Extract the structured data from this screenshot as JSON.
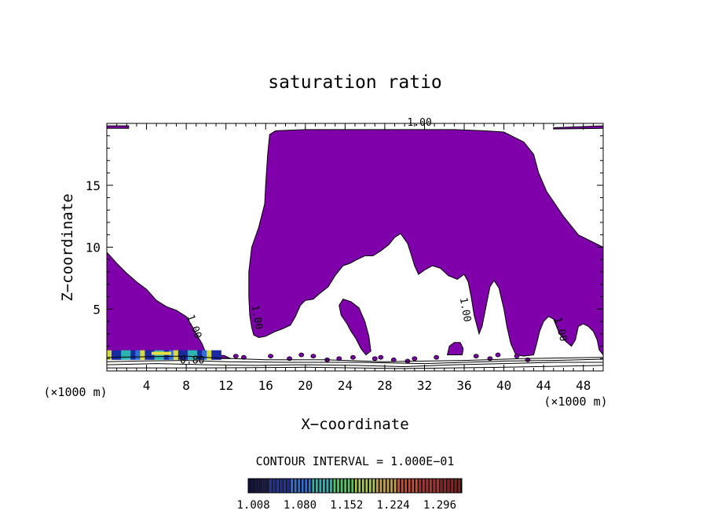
{
  "chart_data": {
    "type": "contour",
    "title": "saturation ratio",
    "xlabel": "X−coordinate",
    "ylabel": "Z−coordinate",
    "x_unit_left": "(×1000 m)",
    "x_unit_right": "(×1000 m)",
    "xlim": [
      0,
      50
    ],
    "ylim": [
      0,
      20
    ],
    "x_ticks": [
      4,
      8,
      12,
      16,
      20,
      24,
      28,
      32,
      36,
      40,
      44,
      48
    ],
    "y_ticks": [
      5,
      10,
      15
    ],
    "contour_interval_text": "CONTOUR INTERVAL = 1.000E−01",
    "contour_labels": [
      {
        "text": "1.00",
        "x": 31.5,
        "y": 19.8,
        "rotate": 0
      },
      {
        "text": "1.00",
        "x": 8.5,
        "y": 3.5,
        "rotate": 70
      },
      {
        "text": "1.00",
        "x": 14.8,
        "y": 4.3,
        "rotate": 80
      },
      {
        "text": "1.00",
        "x": 35.8,
        "y": 4.9,
        "rotate": 80
      },
      {
        "text": "1.00",
        "x": 45.4,
        "y": 3.3,
        "rotate": 75
      },
      {
        "text": "0.80",
        "x": 8.6,
        "y": 0.6,
        "rotate": 0
      }
    ],
    "colorbar": {
      "ticks": [
        "1.008",
        "1.080",
        "1.152",
        "1.224",
        "1.296"
      ],
      "min": 1.0,
      "max": 1.33,
      "colors": [
        "#10104a",
        "#1a2aa0",
        "#2f6fd8",
        "#2fb3b0",
        "#4fc860",
        "#a8c84a",
        "#c8a040",
        "#c85030",
        "#b02a2a",
        "#901a1a"
      ]
    },
    "fill_color": "#7f00aa",
    "regions": [
      {
        "name": "left-lobe",
        "points": [
          [
            0,
            9.6
          ],
          [
            1,
            8.7
          ],
          [
            2,
            7.9
          ],
          [
            3,
            7.2
          ],
          [
            4,
            6.6
          ],
          [
            5,
            5.7
          ],
          [
            6,
            5.2
          ],
          [
            7,
            4.9
          ],
          [
            8,
            4.4
          ],
          [
            8.6,
            3.6
          ],
          [
            9,
            3.0
          ],
          [
            9.6,
            2.2
          ],
          [
            10,
            1.4
          ],
          [
            11,
            1.25
          ],
          [
            11.8,
            1.25
          ],
          [
            12.5,
            1.0
          ],
          [
            0,
            1.0
          ]
        ]
      },
      {
        "name": "central-plume",
        "points": [
          [
            14.8,
            2.9
          ],
          [
            14.6,
            3.5
          ],
          [
            14.4,
            4.5
          ],
          [
            14.3,
            6
          ],
          [
            14.3,
            8
          ],
          [
            14.6,
            10
          ],
          [
            15.3,
            11.6
          ],
          [
            15.9,
            13.5
          ],
          [
            16.0,
            15.0
          ],
          [
            16.2,
            17.5
          ],
          [
            16.4,
            19.1
          ],
          [
            17,
            19.4
          ],
          [
            20,
            19.5
          ],
          [
            25,
            19.5
          ],
          [
            30,
            19.5
          ],
          [
            35,
            19.5
          ],
          [
            38,
            19.4
          ],
          [
            40,
            19.3
          ],
          [
            42,
            18.5
          ],
          [
            43,
            17.5
          ],
          [
            43.5,
            16
          ],
          [
            44.3,
            14.5
          ],
          [
            46,
            12.5
          ],
          [
            47.5,
            11.0
          ],
          [
            50,
            10.0
          ],
          [
            50,
            1.3
          ],
          [
            49.6,
            1.7
          ],
          [
            49.4,
            2.5
          ],
          [
            49.0,
            3.2
          ],
          [
            48.5,
            3.6
          ],
          [
            48.0,
            3.8
          ],
          [
            47.5,
            3.6
          ],
          [
            47.2,
            2.5
          ],
          [
            46.8,
            2.0
          ],
          [
            46.2,
            2.4
          ],
          [
            45.6,
            3.0
          ],
          [
            45,
            4.2
          ],
          [
            44.5,
            4.4
          ],
          [
            44.0,
            4.0
          ],
          [
            43.6,
            3.2
          ],
          [
            43.3,
            2.2
          ],
          [
            43,
            1.3
          ],
          [
            42,
            1.2
          ],
          [
            41.2,
            1.3
          ],
          [
            40.7,
            2.2
          ],
          [
            40.3,
            3.6
          ],
          [
            40.0,
            5.0
          ],
          [
            39.5,
            6.7
          ],
          [
            39.0,
            7.3
          ],
          [
            38.6,
            6.8
          ],
          [
            38.2,
            5.2
          ],
          [
            37.8,
            3.6
          ],
          [
            37.5,
            3.0
          ],
          [
            37.0,
            4.5
          ],
          [
            36.7,
            6.0
          ],
          [
            36.4,
            7.2
          ],
          [
            36.0,
            7.8
          ],
          [
            35.3,
            7.4
          ],
          [
            34.4,
            7.7
          ],
          [
            33.6,
            8.3
          ],
          [
            32.8,
            8.5
          ],
          [
            32.1,
            8.2
          ],
          [
            31.4,
            7.8
          ],
          [
            31.0,
            8.5
          ],
          [
            30.7,
            9.3
          ],
          [
            30.3,
            10.3
          ],
          [
            29.6,
            11.1
          ],
          [
            29.0,
            10.8
          ],
          [
            28.4,
            10.2
          ],
          [
            27.6,
            9.7
          ],
          [
            26.8,
            9.3
          ],
          [
            26.0,
            9.3
          ],
          [
            25.2,
            9.0
          ],
          [
            24.5,
            8.7
          ],
          [
            23.8,
            8.5
          ],
          [
            23.0,
            7.7
          ],
          [
            22.3,
            6.8
          ],
          [
            21.5,
            6.3
          ],
          [
            20.8,
            5.8
          ],
          [
            20.0,
            5.7
          ],
          [
            19.5,
            5.3
          ],
          [
            19.0,
            4.4
          ],
          [
            18.5,
            3.7
          ],
          [
            17.7,
            3.4
          ],
          [
            17,
            3.2
          ],
          [
            16,
            2.8
          ],
          [
            15.3,
            2.7
          ]
        ]
      },
      {
        "name": "center-blob",
        "points": [
          [
            24.2,
            3.8
          ],
          [
            23.6,
            4.5
          ],
          [
            23.4,
            5.3
          ],
          [
            23.8,
            5.8
          ],
          [
            24.6,
            5.6
          ],
          [
            25.4,
            5.1
          ],
          [
            26.0,
            4.0
          ],
          [
            26.4,
            2.8
          ],
          [
            26.6,
            1.6
          ],
          [
            26.1,
            1.3
          ],
          [
            25.6,
            1.8
          ],
          [
            25.1,
            2.6
          ],
          [
            24.6,
            3.2
          ]
        ]
      },
      {
        "name": "small-blob-36",
        "points": [
          [
            34.3,
            1.3
          ],
          [
            34.5,
            2.0
          ],
          [
            35.0,
            2.3
          ],
          [
            35.6,
            2.3
          ],
          [
            35.9,
            1.8
          ],
          [
            35.8,
            1.3
          ]
        ]
      },
      {
        "name": "top-left-strip",
        "points": [
          [
            0,
            19.8
          ],
          [
            2.2,
            19.8
          ],
          [
            2.2,
            19.6
          ],
          [
            0,
            19.6
          ]
        ]
      },
      {
        "name": "top-right-strip",
        "points": [
          [
            45,
            19.65
          ],
          [
            50,
            19.8
          ],
          [
            50,
            19.6
          ],
          [
            45,
            19.55
          ]
        ]
      }
    ],
    "contour_lines": [
      [
        [
          0,
          0.5
        ],
        [
          5,
          0.6
        ],
        [
          10,
          0.5
        ],
        [
          15,
          0.45
        ],
        [
          20,
          0.5
        ],
        [
          25,
          0.45
        ],
        [
          30,
          0.35
        ],
        [
          35,
          0.5
        ],
        [
          40,
          0.6
        ],
        [
          45,
          0.7
        ],
        [
          50,
          0.7
        ]
      ],
      [
        [
          0,
          0.25
        ],
        [
          10,
          0.25
        ],
        [
          20,
          0.3
        ],
        [
          30,
          0.2
        ],
        [
          40,
          0.3
        ],
        [
          50,
          0.45
        ]
      ],
      [
        [
          0,
          0.75
        ],
        [
          3,
          0.8
        ],
        [
          8,
          0.85
        ],
        [
          12,
          0.75
        ],
        [
          18,
          0.7
        ],
        [
          25,
          0.7
        ],
        [
          32,
          0.6
        ],
        [
          40,
          0.8
        ],
        [
          45,
          0.85
        ],
        [
          50,
          0.95
        ]
      ],
      [
        [
          0,
          1.1
        ],
        [
          4,
          1.15
        ],
        [
          8,
          1.2
        ],
        [
          11,
          1.05
        ],
        [
          16,
          0.9
        ],
        [
          22,
          0.9
        ],
        [
          28,
          0.75
        ],
        [
          36,
          0.85
        ],
        [
          42,
          1.0
        ],
        [
          50,
          1.1
        ]
      ]
    ],
    "speckles": [
      [
        13.0,
        1.2
      ],
      [
        13.8,
        1.1
      ],
      [
        16.5,
        1.2
      ],
      [
        18.4,
        1.0
      ],
      [
        19.6,
        1.3
      ],
      [
        20.8,
        1.2
      ],
      [
        22.2,
        0.9
      ],
      [
        23.4,
        1.0
      ],
      [
        24.8,
        1.1
      ],
      [
        27.0,
        1.0
      ],
      [
        27.6,
        1.1
      ],
      [
        28.9,
        0.9
      ],
      [
        30.3,
        0.8
      ],
      [
        31.0,
        1.0
      ],
      [
        33.2,
        1.1
      ],
      [
        37.2,
        1.2
      ],
      [
        38.6,
        1.0
      ],
      [
        39.4,
        1.3
      ],
      [
        41.3,
        1.2
      ],
      [
        42.4,
        0.9
      ]
    ],
    "high_band": {
      "x0": 0,
      "x1": 11.5,
      "y0": 0.9,
      "y1": 1.8
    }
  }
}
